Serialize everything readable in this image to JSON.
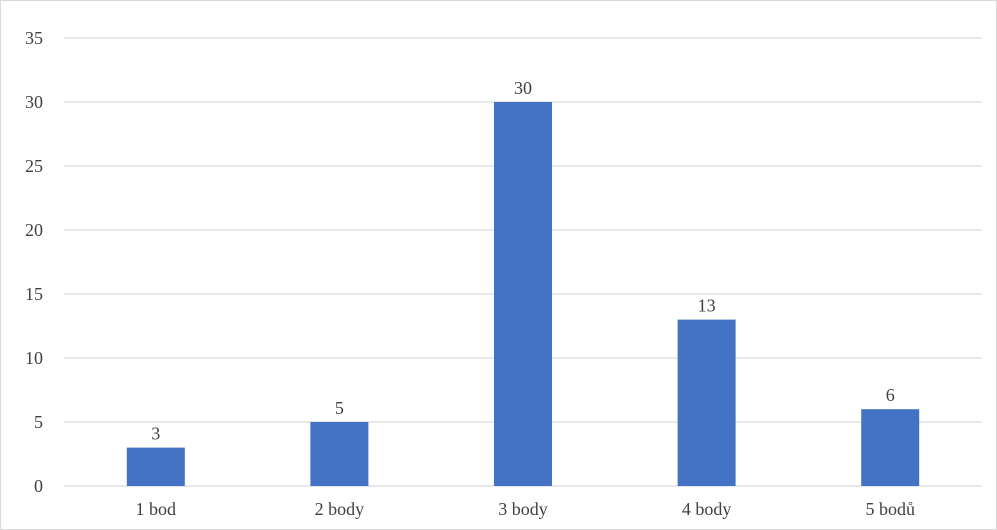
{
  "chart_data": {
    "type": "bar",
    "title": "",
    "xlabel": "",
    "ylabel": "",
    "categories": [
      "1 bod",
      "2 body",
      "3 body",
      "4 body",
      "5 bodů"
    ],
    "values": [
      3,
      5,
      30,
      13,
      6
    ],
    "ylim": [
      0,
      35
    ],
    "yticks": [
      "0",
      "5",
      "10",
      "15",
      "20",
      "25",
      "30",
      "35"
    ],
    "ytick_step": 5,
    "data_labels": [
      "3",
      "5",
      "30",
      "13",
      "6"
    ],
    "bar_color": "#4472c4",
    "grid_color": "#d9d9d9",
    "grid": true,
    "legend": "none"
  }
}
